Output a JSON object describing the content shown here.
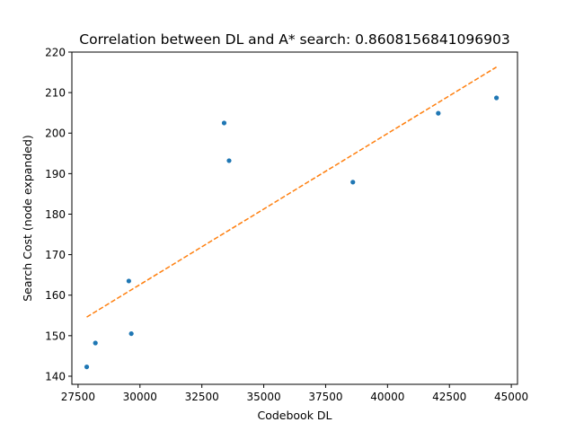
{
  "chart_data": {
    "type": "scatter",
    "title": "Correlation between DL and A* search: 0.8608156841096903",
    "xlabel": "Codebook DL",
    "ylabel": "Search Cost (node expanded)",
    "xlim": [
      27250,
      45250
    ],
    "ylim": [
      138,
      220
    ],
    "xticks": [
      27500,
      30000,
      32500,
      35000,
      37500,
      40000,
      42500,
      45000
    ],
    "yticks": [
      140,
      150,
      160,
      170,
      180,
      190,
      200,
      210,
      220
    ],
    "grid": false,
    "series": [
      {
        "kind": "points",
        "color": "#1f77b4",
        "points": [
          {
            "x": 27850,
            "y": 142.3
          },
          {
            "x": 28200,
            "y": 148.2
          },
          {
            "x": 29550,
            "y": 163.5
          },
          {
            "x": 29650,
            "y": 150.5
          },
          {
            "x": 33400,
            "y": 202.5
          },
          {
            "x": 33600,
            "y": 193.2
          },
          {
            "x": 38600,
            "y": 187.9
          },
          {
            "x": 42050,
            "y": 204.9
          },
          {
            "x": 44400,
            "y": 208.7
          }
        ]
      },
      {
        "kind": "fit-line",
        "color": "#ff7f0e",
        "dash": "dashed",
        "points": [
          {
            "x": 27850,
            "y": 154.6
          },
          {
            "x": 44400,
            "y": 216.3
          }
        ]
      }
    ]
  }
}
